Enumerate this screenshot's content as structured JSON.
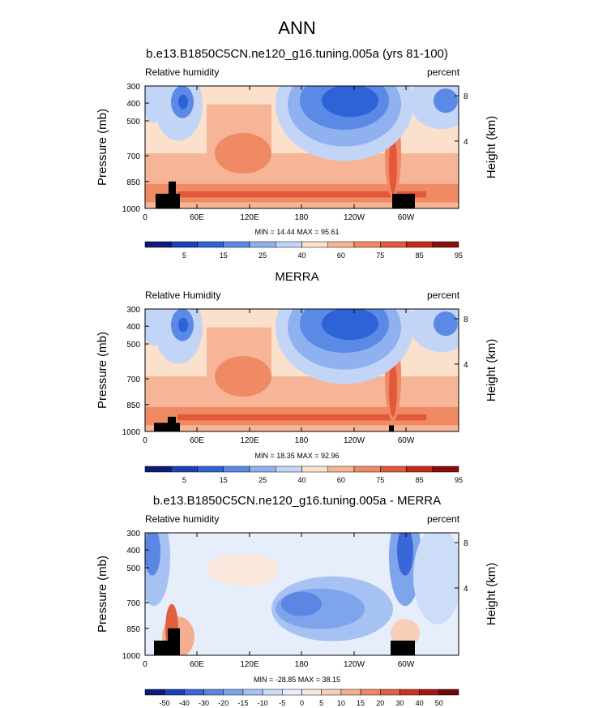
{
  "figure": {
    "title": "ANN"
  },
  "colors": {
    "palette_10": [
      "#0d1a7a",
      "#1d3fb8",
      "#2d63d6",
      "#5a8ae6",
      "#8fb1f0",
      "#c2d5f6",
      "#fbe0cc",
      "#f6b596",
      "#ef8a64",
      "#e2593a",
      "#c52a1a",
      "#8a0d0d"
    ],
    "palette_diff": [
      "#0d1a7a",
      "#1d3fb8",
      "#3a66d9",
      "#5b86e4",
      "#7ea4ec",
      "#a6c2f3",
      "#cddcf7",
      "#e7eefb",
      "#fbe8dc",
      "#f7cfb8",
      "#f2ae8e",
      "#ec8867",
      "#e25f41",
      "#cc3620",
      "#a51512",
      "#6f0909"
    ],
    "terrain": "#000000"
  },
  "chart_data": [
    {
      "type": "heatmap",
      "title": "b.e13.B1850C5CN.ne120_g16.tuning.005a (yrs 81-100)",
      "left_label": "Relative humidity",
      "right_label": "percent",
      "ylabel": "Pressure (mb)",
      "ylabel_right": "Height (km)",
      "xticks": [
        "0",
        "60E",
        "120E",
        "180",
        "120W",
        "60W"
      ],
      "yticks": [
        "300",
        "400",
        "500",
        "700",
        "850",
        "1000"
      ],
      "yticks_right": [
        "8",
        "4"
      ],
      "min_max": "MIN = 14.44  MAX = 95.61",
      "colorbar_labels": [
        "5",
        "15",
        "25",
        "40",
        "60",
        "75",
        "85",
        "95"
      ]
    },
    {
      "type": "heatmap",
      "title": "MERRA",
      "left_label": "Relative Humidity",
      "right_label": "percent",
      "ylabel": "Pressure (mb)",
      "ylabel_right": "Height (km)",
      "xticks": [
        "0",
        "60E",
        "120E",
        "180",
        "120W",
        "60W"
      ],
      "yticks": [
        "300",
        "400",
        "500",
        "700",
        "850",
        "1000"
      ],
      "yticks_right": [
        "8",
        "4"
      ],
      "min_max": "MIN = 18.35  MAX = 92.96",
      "colorbar_labels": [
        "5",
        "15",
        "25",
        "40",
        "60",
        "75",
        "85",
        "95"
      ]
    },
    {
      "type": "heatmap",
      "title": "b.e13.B1850C5CN.ne120_g16.tuning.005a - MERRA",
      "left_label": "Relative humidity",
      "right_label": "percent",
      "ylabel": "Pressure (mb)",
      "ylabel_right": "Height (km)",
      "xticks": [
        "0",
        "60E",
        "120E",
        "180",
        "120W",
        "60W"
      ],
      "yticks": [
        "300",
        "400",
        "500",
        "700",
        "850",
        "1000"
      ],
      "yticks_right": [
        "8",
        "4"
      ],
      "min_max": "MIN = -28.85  MAX = 38.15",
      "colorbar_labels": [
        "-50",
        "-40",
        "-30",
        "-20",
        "-15",
        "-10",
        "-5",
        "0",
        "5",
        "10",
        "15",
        "20",
        "30",
        "40",
        "50"
      ]
    }
  ]
}
